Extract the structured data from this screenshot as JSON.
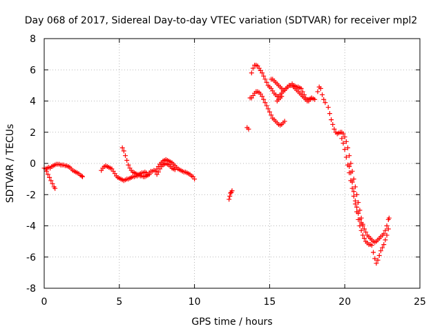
{
  "chart_data": {
    "type": "scatter",
    "title": "Day 068 of 2017, Sidereal Day-to-day VTEC variation (SDTVAR) for receiver mpl2",
    "xlabel": "GPS time / hours",
    "ylabel": "SDTVAR / TECUs",
    "xlim": [
      0,
      25
    ],
    "ylim": [
      -8,
      8
    ],
    "x_ticks": [
      0,
      5,
      10,
      15,
      20,
      25
    ],
    "y_ticks": [
      -8,
      -6,
      -4,
      -2,
      0,
      2,
      4,
      6,
      8
    ],
    "grid": true,
    "marker": "plus",
    "color": "#ff0000",
    "series": [
      {
        "points": [
          [
            0.0,
            -0.3
          ],
          [
            0.1,
            -0.35
          ],
          [
            0.2,
            -0.3
          ],
          [
            0.3,
            -0.25
          ],
          [
            0.4,
            -0.3
          ],
          [
            0.5,
            -0.2
          ],
          [
            0.6,
            -0.15
          ],
          [
            0.7,
            -0.1
          ],
          [
            0.8,
            -0.05
          ],
          [
            0.9,
            -0.05
          ],
          [
            1.0,
            -0.05
          ],
          [
            1.1,
            -0.1
          ],
          [
            1.2,
            -0.1
          ],
          [
            1.3,
            -0.1
          ],
          [
            1.4,
            -0.15
          ],
          [
            1.5,
            -0.15
          ],
          [
            1.6,
            -0.2
          ],
          [
            1.7,
            -0.25
          ],
          [
            1.8,
            -0.35
          ],
          [
            1.9,
            -0.45
          ],
          [
            2.0,
            -0.5
          ],
          [
            2.1,
            -0.55
          ],
          [
            2.2,
            -0.6
          ],
          [
            2.3,
            -0.65
          ],
          [
            2.4,
            -0.75
          ],
          [
            2.5,
            -0.8
          ],
          [
            2.55,
            -0.85
          ],
          [
            0.15,
            -0.5
          ],
          [
            0.25,
            -0.7
          ],
          [
            0.35,
            -0.9
          ],
          [
            0.45,
            -1.1
          ],
          [
            0.55,
            -1.3
          ],
          [
            0.65,
            -1.5
          ],
          [
            0.72,
            -1.6
          ],
          [
            3.8,
            -0.45
          ],
          [
            3.9,
            -0.3
          ],
          [
            4.0,
            -0.2
          ],
          [
            4.1,
            -0.15
          ],
          [
            4.2,
            -0.2
          ],
          [
            4.3,
            -0.25
          ],
          [
            4.4,
            -0.3
          ],
          [
            4.5,
            -0.35
          ],
          [
            4.6,
            -0.5
          ],
          [
            4.7,
            -0.65
          ],
          [
            4.8,
            -0.8
          ],
          [
            4.9,
            -0.9
          ],
          [
            5.0,
            -0.95
          ],
          [
            5.1,
            -1.0
          ],
          [
            5.2,
            -1.05
          ],
          [
            5.3,
            -1.1
          ],
          [
            5.4,
            -1.05
          ],
          [
            5.5,
            -1.0
          ],
          [
            5.6,
            -1.0
          ],
          [
            5.7,
            -0.95
          ],
          [
            5.8,
            -0.9
          ],
          [
            5.9,
            -0.85
          ],
          [
            6.0,
            -0.85
          ],
          [
            6.1,
            -0.8
          ],
          [
            6.2,
            -0.8
          ],
          [
            6.3,
            -0.75
          ],
          [
            6.4,
            -0.8
          ],
          [
            6.5,
            -0.8
          ],
          [
            6.6,
            -0.85
          ],
          [
            6.7,
            -0.85
          ],
          [
            6.8,
            -0.8
          ],
          [
            6.9,
            -0.75
          ],
          [
            7.0,
            -0.7
          ],
          [
            5.2,
            1.0
          ],
          [
            5.3,
            0.8
          ],
          [
            5.4,
            0.5
          ],
          [
            5.5,
            0.2
          ],
          [
            5.6,
            -0.1
          ],
          [
            5.7,
            -0.3
          ],
          [
            5.8,
            -0.45
          ],
          [
            5.9,
            -0.55
          ],
          [
            6.0,
            -0.6
          ],
          [
            6.1,
            -0.65
          ],
          [
            6.2,
            -0.7
          ],
          [
            6.3,
            -0.7
          ],
          [
            6.4,
            -0.65
          ],
          [
            6.5,
            -0.6
          ],
          [
            6.6,
            -0.6
          ],
          [
            6.7,
            -0.55
          ],
          [
            6.8,
            -0.6
          ],
          [
            6.9,
            -0.7
          ],
          [
            7.0,
            -0.6
          ],
          [
            7.1,
            -0.5
          ],
          [
            7.2,
            -0.5
          ],
          [
            7.3,
            -0.45
          ],
          [
            7.4,
            -0.5
          ],
          [
            7.5,
            -0.35
          ],
          [
            7.6,
            -0.2
          ],
          [
            7.7,
            -0.05
          ],
          [
            7.8,
            0.05
          ],
          [
            7.9,
            0.15
          ],
          [
            8.0,
            0.2
          ],
          [
            8.1,
            0.25
          ],
          [
            8.2,
            0.2
          ],
          [
            8.3,
            0.15
          ],
          [
            8.4,
            0.1
          ],
          [
            8.5,
            0.05
          ],
          [
            8.6,
            -0.05
          ],
          [
            8.7,
            -0.15
          ],
          [
            8.8,
            -0.25
          ],
          [
            8.9,
            -0.35
          ],
          [
            9.0,
            -0.4
          ],
          [
            9.1,
            -0.45
          ],
          [
            9.2,
            -0.5
          ],
          [
            9.3,
            -0.55
          ],
          [
            9.4,
            -0.55
          ],
          [
            9.5,
            -0.6
          ],
          [
            9.6,
            -0.65
          ],
          [
            9.7,
            -0.7
          ],
          [
            9.8,
            -0.8
          ],
          [
            9.9,
            -0.85
          ],
          [
            10.0,
            -1.0
          ],
          [
            7.5,
            -0.7
          ],
          [
            7.6,
            -0.55
          ],
          [
            7.7,
            -0.35
          ],
          [
            7.8,
            -0.2
          ],
          [
            7.9,
            -0.1
          ],
          [
            8.0,
            -0.05
          ],
          [
            8.1,
            0.0
          ],
          [
            8.2,
            -0.05
          ],
          [
            8.3,
            -0.1
          ],
          [
            8.4,
            -0.2
          ],
          [
            8.5,
            -0.3
          ],
          [
            8.6,
            -0.35
          ],
          [
            8.7,
            -0.4
          ],
          [
            12.3,
            -2.3
          ],
          [
            12.35,
            -2.1
          ],
          [
            12.4,
            -1.9
          ],
          [
            12.45,
            -1.85
          ],
          [
            12.5,
            -1.75
          ],
          [
            13.5,
            2.3
          ],
          [
            13.6,
            2.2
          ],
          [
            13.7,
            4.2
          ],
          [
            13.8,
            4.2
          ],
          [
            13.9,
            4.35
          ],
          [
            14.0,
            4.5
          ],
          [
            14.1,
            4.6
          ],
          [
            14.2,
            4.6
          ],
          [
            14.3,
            4.55
          ],
          [
            14.4,
            4.45
          ],
          [
            14.5,
            4.3
          ],
          [
            14.6,
            4.1
          ],
          [
            14.7,
            3.9
          ],
          [
            14.8,
            3.7
          ],
          [
            14.9,
            3.5
          ],
          [
            15.0,
            3.3
          ],
          [
            15.1,
            3.1
          ],
          [
            15.2,
            2.9
          ],
          [
            15.3,
            2.8
          ],
          [
            15.4,
            2.7
          ],
          [
            15.5,
            2.6
          ],
          [
            15.6,
            2.5
          ],
          [
            15.7,
            2.45
          ],
          [
            15.8,
            2.5
          ],
          [
            15.9,
            2.6
          ],
          [
            16.0,
            2.7
          ],
          [
            13.8,
            5.8
          ],
          [
            13.9,
            6.1
          ],
          [
            14.0,
            6.3
          ],
          [
            14.1,
            6.3
          ],
          [
            14.2,
            6.25
          ],
          [
            14.3,
            6.1
          ],
          [
            14.4,
            5.95
          ],
          [
            14.5,
            5.8
          ],
          [
            14.6,
            5.6
          ],
          [
            14.7,
            5.4
          ],
          [
            14.8,
            5.2
          ],
          [
            14.9,
            5.0
          ],
          [
            15.0,
            4.9
          ],
          [
            15.1,
            4.8
          ],
          [
            15.2,
            4.65
          ],
          [
            15.3,
            4.5
          ],
          [
            15.4,
            4.4
          ],
          [
            15.5,
            4.3
          ],
          [
            15.6,
            4.3
          ],
          [
            15.7,
            4.4
          ],
          [
            15.8,
            4.5
          ],
          [
            15.9,
            4.6
          ],
          [
            16.0,
            4.7
          ],
          [
            16.1,
            4.8
          ],
          [
            16.2,
            4.9
          ],
          [
            16.3,
            5.0
          ],
          [
            16.4,
            5.0
          ],
          [
            16.5,
            5.0
          ],
          [
            16.6,
            4.9
          ],
          [
            16.7,
            4.8
          ],
          [
            16.8,
            4.7
          ],
          [
            16.9,
            4.6
          ],
          [
            17.0,
            4.5
          ],
          [
            17.1,
            4.4
          ],
          [
            17.2,
            4.3
          ],
          [
            17.3,
            4.2
          ],
          [
            17.4,
            4.1
          ],
          [
            17.5,
            4.0
          ],
          [
            17.6,
            4.0
          ],
          [
            17.7,
            4.1
          ],
          [
            17.8,
            4.2
          ],
          [
            15.1,
            5.4
          ],
          [
            15.2,
            5.4
          ],
          [
            15.3,
            5.3
          ],
          [
            15.4,
            5.2
          ],
          [
            15.5,
            5.1
          ],
          [
            15.6,
            5.0
          ],
          [
            15.7,
            4.9
          ],
          [
            15.8,
            4.8
          ],
          [
            15.9,
            4.7
          ],
          [
            16.0,
            4.7
          ],
          [
            16.1,
            4.8
          ],
          [
            16.2,
            4.9
          ],
          [
            16.3,
            5.0
          ],
          [
            16.4,
            5.0
          ],
          [
            16.5,
            5.1
          ],
          [
            16.6,
            5.0
          ],
          [
            16.7,
            4.95
          ],
          [
            16.8,
            4.9
          ],
          [
            16.9,
            4.9
          ],
          [
            17.0,
            4.85
          ],
          [
            17.1,
            4.8
          ],
          [
            17.2,
            4.6
          ],
          [
            17.3,
            4.4
          ],
          [
            17.4,
            4.2
          ],
          [
            17.5,
            4.1
          ],
          [
            17.6,
            4.1
          ],
          [
            17.7,
            4.15
          ],
          [
            17.8,
            4.2
          ],
          [
            17.9,
            4.15
          ],
          [
            18.0,
            4.1
          ],
          [
            15.5,
            4.0
          ],
          [
            15.6,
            4.1
          ],
          [
            15.7,
            4.2
          ],
          [
            15.8,
            4.3
          ],
          [
            18.2,
            4.6
          ],
          [
            18.3,
            4.9
          ],
          [
            18.4,
            4.8
          ],
          [
            18.5,
            4.4
          ],
          [
            18.6,
            4.1
          ],
          [
            18.7,
            3.9
          ],
          [
            18.9,
            3.6
          ],
          [
            19.0,
            3.2
          ],
          [
            19.1,
            2.8
          ],
          [
            19.2,
            2.5
          ],
          [
            19.3,
            2.2
          ],
          [
            19.4,
            2.0
          ],
          [
            19.5,
            1.9
          ],
          [
            19.6,
            1.95
          ],
          [
            19.7,
            2.0
          ],
          [
            19.8,
            2.0
          ],
          [
            19.9,
            1.9
          ],
          [
            20.0,
            1.7
          ],
          [
            20.1,
            1.4
          ],
          [
            20.2,
            1.0
          ],
          [
            20.3,
            0.5
          ],
          [
            20.4,
            0.0
          ],
          [
            20.5,
            -0.5
          ],
          [
            20.6,
            -1.0
          ],
          [
            20.7,
            -1.5
          ],
          [
            20.8,
            -2.0
          ],
          [
            20.9,
            -2.5
          ],
          [
            21.0,
            -3.0
          ],
          [
            21.1,
            -3.5
          ],
          [
            21.2,
            -3.9
          ],
          [
            21.3,
            -4.2
          ],
          [
            21.4,
            -4.4
          ],
          [
            21.5,
            -4.6
          ],
          [
            21.6,
            -4.7
          ],
          [
            21.7,
            -4.8
          ],
          [
            21.8,
            -4.9
          ],
          [
            21.9,
            -5.0
          ],
          [
            22.0,
            -5.05
          ],
          [
            22.1,
            -5.0
          ],
          [
            22.2,
            -4.9
          ],
          [
            22.3,
            -4.8
          ],
          [
            22.4,
            -4.7
          ],
          [
            22.5,
            -4.6
          ],
          [
            22.6,
            -4.5
          ],
          [
            22.7,
            -4.3
          ],
          [
            22.8,
            -4.0
          ],
          [
            22.9,
            -3.6
          ],
          [
            19.8,
            1.6
          ],
          [
            19.9,
            1.3
          ],
          [
            20.0,
            0.9
          ],
          [
            20.1,
            0.4
          ],
          [
            20.2,
            -0.1
          ],
          [
            20.3,
            -0.6
          ],
          [
            20.4,
            -1.1
          ],
          [
            20.5,
            -1.6
          ],
          [
            20.6,
            -2.1
          ],
          [
            20.7,
            -2.6
          ],
          [
            20.8,
            -3.1
          ],
          [
            20.9,
            -3.6
          ],
          [
            21.0,
            -4.0
          ],
          [
            21.1,
            -4.3
          ],
          [
            21.2,
            -4.6
          ],
          [
            21.3,
            -4.8
          ],
          [
            21.4,
            -5.0
          ],
          [
            21.5,
            -5.1
          ],
          [
            21.6,
            -5.2
          ],
          [
            21.7,
            -5.2
          ],
          [
            21.8,
            -5.25
          ],
          [
            21.9,
            -5.7
          ],
          [
            22.0,
            -6.1
          ],
          [
            22.1,
            -6.4
          ],
          [
            22.2,
            -6.2
          ],
          [
            22.3,
            -5.9
          ],
          [
            22.4,
            -5.6
          ],
          [
            22.5,
            -5.4
          ],
          [
            22.6,
            -5.2
          ],
          [
            22.7,
            -4.9
          ],
          [
            22.8,
            -4.6
          ],
          [
            22.9,
            -4.2
          ],
          [
            22.95,
            -3.5
          ],
          [
            20.3,
            -0.2
          ],
          [
            20.4,
            -0.6
          ],
          [
            20.5,
            -1.2
          ],
          [
            20.6,
            -1.8
          ],
          [
            20.7,
            -2.4
          ],
          [
            20.8,
            -2.8
          ],
          [
            20.9,
            -3.2
          ],
          [
            21.0,
            -3.6
          ],
          [
            21.1,
            -3.8
          ],
          [
            21.2,
            -4.0
          ]
        ]
      }
    ]
  }
}
